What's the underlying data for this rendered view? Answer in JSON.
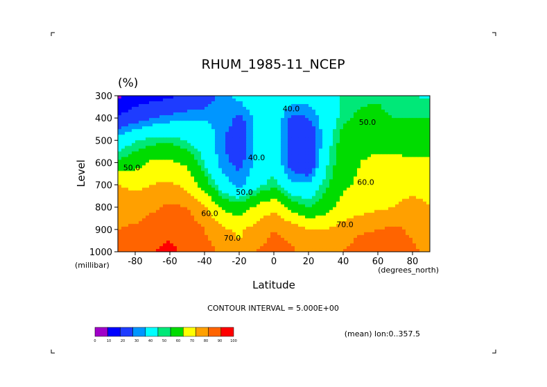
{
  "chart_data": {
    "type": "heatmap",
    "title": "RHUM_1985-11_NCEP",
    "unit_label": "(%)",
    "xlabel": "Latitude",
    "ylabel": "Level",
    "x_unit": "(degrees_north)",
    "y_unit": "(millibar)",
    "xlim": [
      -90,
      90
    ],
    "ylim": [
      1000,
      300
    ],
    "x_ticks": [
      "-80",
      "-60",
      "-40",
      "-20",
      "0",
      "20",
      "40",
      "60",
      "80"
    ],
    "x_tick_values": [
      -80,
      -60,
      -40,
      -20,
      0,
      20,
      40,
      60,
      80
    ],
    "y_ticks": [
      "300",
      "400",
      "500",
      "600",
      "700",
      "800",
      "900",
      "1000"
    ],
    "y_tick_values": [
      300,
      400,
      500,
      600,
      700,
      800,
      900,
      1000
    ],
    "contour_labels": [
      {
        "text": "40.0",
        "lat": 10,
        "lev": 370
      },
      {
        "text": "40.0",
        "lat": -10,
        "lev": 590
      },
      {
        "text": "50.0",
        "lat": -17,
        "lev": 745
      },
      {
        "text": "60.0",
        "lat": -37,
        "lev": 840
      },
      {
        "text": "70.0",
        "lat": -24,
        "lev": 950
      },
      {
        "text": "70.0",
        "lat": 41,
        "lev": 890
      },
      {
        "text": "60.0",
        "lat": 53,
        "lev": 700
      },
      {
        "text": "50.0",
        "lat": 54,
        "lev": 430
      },
      {
        "text": "50.0",
        "lat": -82,
        "lev": 635
      }
    ],
    "latitudes": [
      -90,
      -80,
      -70,
      -60,
      -50,
      -40,
      -30,
      -20,
      -10,
      0,
      10,
      20,
      30,
      40,
      50,
      60,
      70,
      80,
      90
    ],
    "levels": [
      300,
      400,
      500,
      600,
      700,
      800,
      900,
      1000
    ],
    "values": [
      [
        8,
        14,
        16,
        18,
        22,
        25,
        32,
        37,
        44,
        43,
        39,
        38,
        42,
        46,
        48,
        49,
        46,
        45,
        44
      ],
      [
        22,
        26,
        30,
        32,
        34,
        34,
        35,
        28,
        36,
        42,
        28,
        30,
        38,
        48,
        52,
        52,
        50,
        50,
        50
      ],
      [
        38,
        44,
        47,
        48,
        44,
        40,
        31,
        23,
        37,
        42,
        25,
        21,
        40,
        54,
        57,
        57,
        56,
        55,
        55
      ],
      [
        52,
        56,
        62,
        62,
        58,
        44,
        32,
        28,
        36,
        42,
        26,
        21,
        43,
        56,
        60,
        62,
        62,
        62,
        62
      ],
      [
        70,
        68,
        70,
        72,
        67,
        55,
        40,
        32,
        42,
        48,
        36,
        36,
        48,
        58,
        62,
        66,
        68,
        68,
        68
      ],
      [
        76,
        74,
        78,
        82,
        80,
        72,
        58,
        54,
        62,
        68,
        56,
        50,
        56,
        64,
        66,
        68,
        70,
        72,
        70
      ],
      [
        80,
        82,
        86,
        88,
        85,
        80,
        72,
        68,
        74,
        80,
        76,
        70,
        70,
        74,
        78,
        80,
        82,
        78,
        72
      ],
      [
        84,
        86,
        90,
        92,
        88,
        84,
        78,
        72,
        80,
        84,
        82,
        76,
        76,
        80,
        86,
        88,
        86,
        82,
        78
      ]
    ],
    "colorbar": {
      "ticks": [
        "0",
        "10",
        "20",
        "30",
        "40",
        "50",
        "60",
        "70",
        "80",
        "90",
        "100"
      ],
      "colors": [
        "#a000c8",
        "#0000ff",
        "#1e3cff",
        "#0096ff",
        "#00ffff",
        "#00e878",
        "#00dc00",
        "#ffff00",
        "#ffa000",
        "#ff6400",
        "#ff0000"
      ]
    }
  },
  "annotations": {
    "contour_interval": "CONTOUR INTERVAL = 5.000E+00",
    "mean_note": "(mean) lon:0..357.5"
  }
}
